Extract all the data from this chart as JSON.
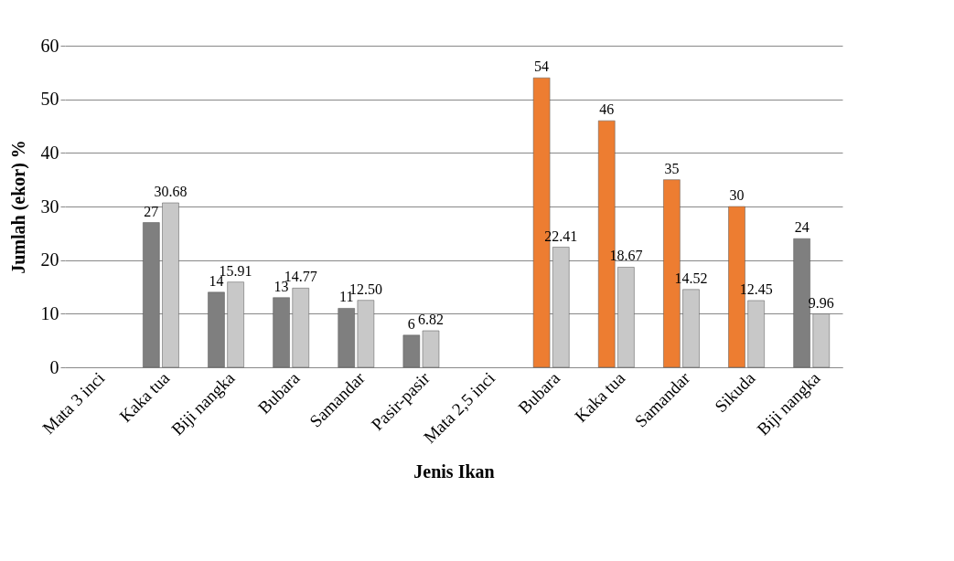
{
  "chart_data": {
    "type": "bar",
    "xlabel": "Jenis Ikan",
    "ylabel": "Jumlah (ekor) %",
    "categories": [
      "Mata 3 inci",
      "Kaka tua",
      "Biji nangka",
      "Bubara",
      "Samandar",
      "Pasir-pasir",
      "Mata 2,5 inci",
      "Bubara",
      "Kaka tua",
      "Samandar",
      "Sikuda",
      "Biji nangka"
    ],
    "series": [
      {
        "colors": [
          "#7f7f7f",
          "#7f7f7f",
          "#7f7f7f",
          "#7f7f7f",
          "#7f7f7f",
          "#7f7f7f",
          "#7f7f7f",
          "#ed7d31",
          "#ed7d31",
          "#ed7d31",
          "#ed7d31",
          "#7f7f7f"
        ],
        "values": [
          null,
          27,
          14,
          13,
          11,
          6,
          null,
          54,
          46,
          35,
          30,
          24
        ],
        "value_labels": [
          null,
          "27",
          "14",
          "13",
          "11",
          "6",
          null,
          "54",
          "46",
          "35",
          "30",
          "24"
        ]
      },
      {
        "color": "#c8c8c8",
        "values": [
          null,
          30.68,
          15.91,
          14.77,
          12.5,
          6.82,
          null,
          22.41,
          18.67,
          14.52,
          12.45,
          9.96
        ],
        "value_labels": [
          null,
          "30.68",
          "15.91",
          "14.77",
          "12.50",
          "6.82",
          null,
          "22.41",
          "18.67",
          "14.52",
          "12.45",
          "9.96"
        ]
      }
    ],
    "ylim": [
      0,
      60
    ],
    "yticks": [
      0,
      10,
      20,
      30,
      40,
      50,
      60
    ],
    "grid": "y"
  }
}
